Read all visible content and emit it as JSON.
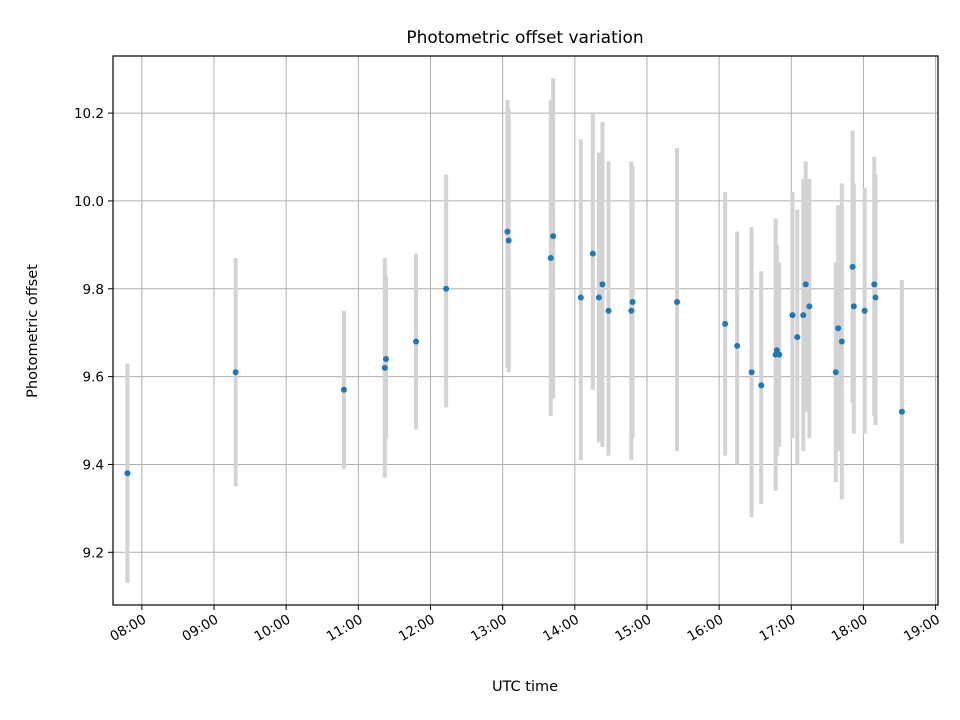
{
  "chart_data": {
    "type": "scatter",
    "title": "Photometric offset variation",
    "xlabel": "UTC time",
    "ylabel": "Photometric offset",
    "xlim": [
      "07:36",
      "19:02"
    ],
    "ylim": [
      9.08,
      10.33
    ],
    "x_ticks": [
      "08:00",
      "09:00",
      "10:00",
      "11:00",
      "12:00",
      "13:00",
      "14:00",
      "15:00",
      "16:00",
      "17:00",
      "18:00",
      "19:00"
    ],
    "y_ticks": [
      9.2,
      9.4,
      9.6,
      9.8,
      10.0,
      10.2
    ],
    "y_tick_labels": [
      "9.2",
      "9.4",
      "9.6",
      "9.8",
      "10.0",
      "10.2"
    ],
    "grid": true,
    "colors": {
      "points": "#1f77b4",
      "errorbars": "#d3d3d3",
      "grid": "#b0b0b0"
    },
    "points": [
      {
        "x": "07:48",
        "y": 9.38,
        "low": 9.13,
        "high": 9.63
      },
      {
        "x": "09:18",
        "y": 9.61,
        "low": 9.35,
        "high": 9.87
      },
      {
        "x": "10:48",
        "y": 9.57,
        "low": 9.39,
        "high": 9.75
      },
      {
        "x": "11:22",
        "y": 9.62,
        "low": 9.37,
        "high": 9.87
      },
      {
        "x": "11:23",
        "y": 9.64,
        "low": 9.46,
        "high": 9.83
      },
      {
        "x": "11:48",
        "y": 9.68,
        "low": 9.48,
        "high": 9.88
      },
      {
        "x": "12:13",
        "y": 9.8,
        "low": 9.53,
        "high": 10.06
      },
      {
        "x": "13:04",
        "y": 9.93,
        "low": 9.62,
        "high": 10.23
      },
      {
        "x": "13:05",
        "y": 9.91,
        "low": 9.61,
        "high": 10.21
      },
      {
        "x": "13:40",
        "y": 9.87,
        "low": 9.51,
        "high": 10.23
      },
      {
        "x": "13:42",
        "y": 9.92,
        "low": 9.55,
        "high": 10.28
      },
      {
        "x": "14:05",
        "y": 9.78,
        "low": 9.41,
        "high": 10.14
      },
      {
        "x": "14:15",
        "y": 9.88,
        "low": 9.57,
        "high": 10.2
      },
      {
        "x": "14:20",
        "y": 9.78,
        "low": 9.45,
        "high": 10.11
      },
      {
        "x": "14:23",
        "y": 9.81,
        "low": 9.44,
        "high": 10.18
      },
      {
        "x": "14:28",
        "y": 9.75,
        "low": 9.42,
        "high": 10.09
      },
      {
        "x": "14:47",
        "y": 9.75,
        "low": 9.41,
        "high": 10.09
      },
      {
        "x": "14:48",
        "y": 9.77,
        "low": 9.46,
        "high": 10.08
      },
      {
        "x": "15:25",
        "y": 9.77,
        "low": 9.43,
        "high": 10.12
      },
      {
        "x": "16:05",
        "y": 9.72,
        "low": 9.42,
        "high": 10.02
      },
      {
        "x": "16:15",
        "y": 9.67,
        "low": 9.4,
        "high": 9.93
      },
      {
        "x": "16:27",
        "y": 9.61,
        "low": 9.28,
        "high": 9.94
      },
      {
        "x": "16:35",
        "y": 9.58,
        "low": 9.31,
        "high": 9.84
      },
      {
        "x": "16:47",
        "y": 9.65,
        "low": 9.34,
        "high": 9.96
      },
      {
        "x": "16:48",
        "y": 9.66,
        "low": 9.42,
        "high": 9.9
      },
      {
        "x": "16:50",
        "y": 9.65,
        "low": 9.44,
        "high": 9.86
      },
      {
        "x": "17:01",
        "y": 9.74,
        "low": 9.46,
        "high": 10.02
      },
      {
        "x": "17:05",
        "y": 9.69,
        "low": 9.4,
        "high": 9.98
      },
      {
        "x": "17:10",
        "y": 9.74,
        "low": 9.43,
        "high": 10.05
      },
      {
        "x": "17:12",
        "y": 9.81,
        "low": 9.52,
        "high": 10.09
      },
      {
        "x": "17:15",
        "y": 9.76,
        "low": 9.46,
        "high": 10.05
      },
      {
        "x": "17:37",
        "y": 9.61,
        "low": 9.36,
        "high": 9.86
      },
      {
        "x": "17:39",
        "y": 9.71,
        "low": 9.43,
        "high": 9.99
      },
      {
        "x": "17:42",
        "y": 9.68,
        "low": 9.32,
        "high": 10.04
      },
      {
        "x": "17:51",
        "y": 9.85,
        "low": 9.54,
        "high": 10.16
      },
      {
        "x": "17:52",
        "y": 9.76,
        "low": 9.47,
        "high": 10.04
      },
      {
        "x": "18:01",
        "y": 9.75,
        "low": 9.47,
        "high": 10.03
      },
      {
        "x": "18:09",
        "y": 9.81,
        "low": 9.51,
        "high": 10.1
      },
      {
        "x": "18:10",
        "y": 9.78,
        "low": 9.49,
        "high": 10.06
      },
      {
        "x": "18:32",
        "y": 9.52,
        "low": 9.22,
        "high": 9.82
      }
    ]
  }
}
